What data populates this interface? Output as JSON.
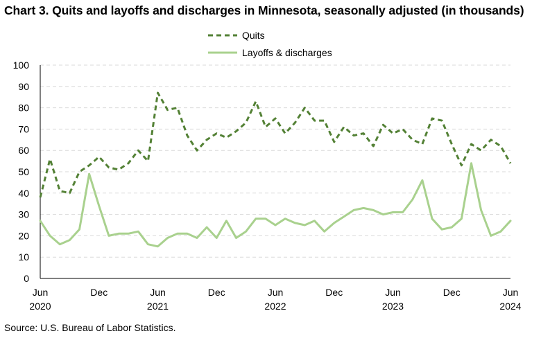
{
  "title": "Chart 3. Quits and layoffs and discharges in Minnesota, seasonally adjusted (in thousands)",
  "source": "Source: U.S. Bureau of Labor Statistics.",
  "colors": {
    "quits": "#538135",
    "layoffs": "#a9d18e",
    "grid": "#d9d9d9",
    "axis": "#000000"
  },
  "chart_data": {
    "type": "line",
    "title": "Chart 3. Quits and layoffs and discharges in Minnesota, seasonally adjusted (in thousands)",
    "xlabel": "",
    "ylabel": "",
    "ylim": [
      0,
      100
    ],
    "yticks": [
      "0",
      "10",
      "20",
      "30",
      "40",
      "50",
      "60",
      "70",
      "80",
      "90",
      "100"
    ],
    "grid": true,
    "legend_position": "top",
    "x": [
      "Jun 2020",
      "Jul 2020",
      "Aug 2020",
      "Sep 2020",
      "Oct 2020",
      "Nov 2020",
      "Dec 2020",
      "Jan 2021",
      "Feb 2021",
      "Mar 2021",
      "Apr 2021",
      "May 2021",
      "Jun 2021",
      "Jul 2021",
      "Aug 2021",
      "Sep 2021",
      "Oct 2021",
      "Nov 2021",
      "Dec 2021",
      "Jan 2022",
      "Feb 2022",
      "Mar 2022",
      "Apr 2022",
      "May 2022",
      "Jun 2022",
      "Jul 2022",
      "Aug 2022",
      "Sep 2022",
      "Oct 2022",
      "Nov 2022",
      "Dec 2022",
      "Jan 2023",
      "Feb 2023",
      "Mar 2023",
      "Apr 2023",
      "May 2023",
      "Jun 2023",
      "Jul 2023",
      "Aug 2023",
      "Sep 2023",
      "Oct 2023",
      "Nov 2023",
      "Dec 2023",
      "Jan 2024",
      "Feb 2024",
      "Mar 2024",
      "Apr 2024",
      "May 2024",
      "Jun 2024"
    ],
    "x_tick_labels": [
      {
        "month": "Jun",
        "year": "2020",
        "index": 0
      },
      {
        "month": "Dec",
        "year": "",
        "index": 6
      },
      {
        "month": "Jun",
        "year": "2021",
        "index": 12
      },
      {
        "month": "Dec",
        "year": "",
        "index": 18
      },
      {
        "month": "Jun",
        "year": "2022",
        "index": 24
      },
      {
        "month": "Dec",
        "year": "",
        "index": 30
      },
      {
        "month": "Jun",
        "year": "2023",
        "index": 36
      },
      {
        "month": "Dec",
        "year": "",
        "index": 42
      },
      {
        "month": "Jun",
        "year": "2024",
        "index": 48
      }
    ],
    "series": [
      {
        "name": "Quits",
        "style": "dashed",
        "values": [
          38,
          56,
          41,
          40,
          50,
          53,
          57,
          52,
          51,
          54,
          60,
          55,
          87,
          79,
          80,
          67,
          60,
          65,
          68,
          66,
          69,
          73,
          83,
          71,
          75,
          68,
          73,
          80,
          74,
          74,
          64,
          71,
          67,
          68,
          62,
          72,
          68,
          70,
          65,
          63,
          75,
          74,
          63,
          53,
          63,
          60,
          65,
          62,
          54
        ]
      },
      {
        "name": "Layoffs & discharges",
        "style": "solid",
        "values": [
          27,
          20,
          16,
          18,
          23,
          49,
          34,
          20,
          21,
          21,
          22,
          16,
          15,
          19,
          21,
          21,
          19,
          24,
          19,
          27,
          19,
          22,
          28,
          28,
          25,
          28,
          26,
          25,
          27,
          22,
          26,
          29,
          32,
          33,
          32,
          30,
          31,
          31,
          37,
          46,
          28,
          23,
          24,
          28,
          54,
          32,
          20,
          22,
          27
        ]
      }
    ]
  }
}
